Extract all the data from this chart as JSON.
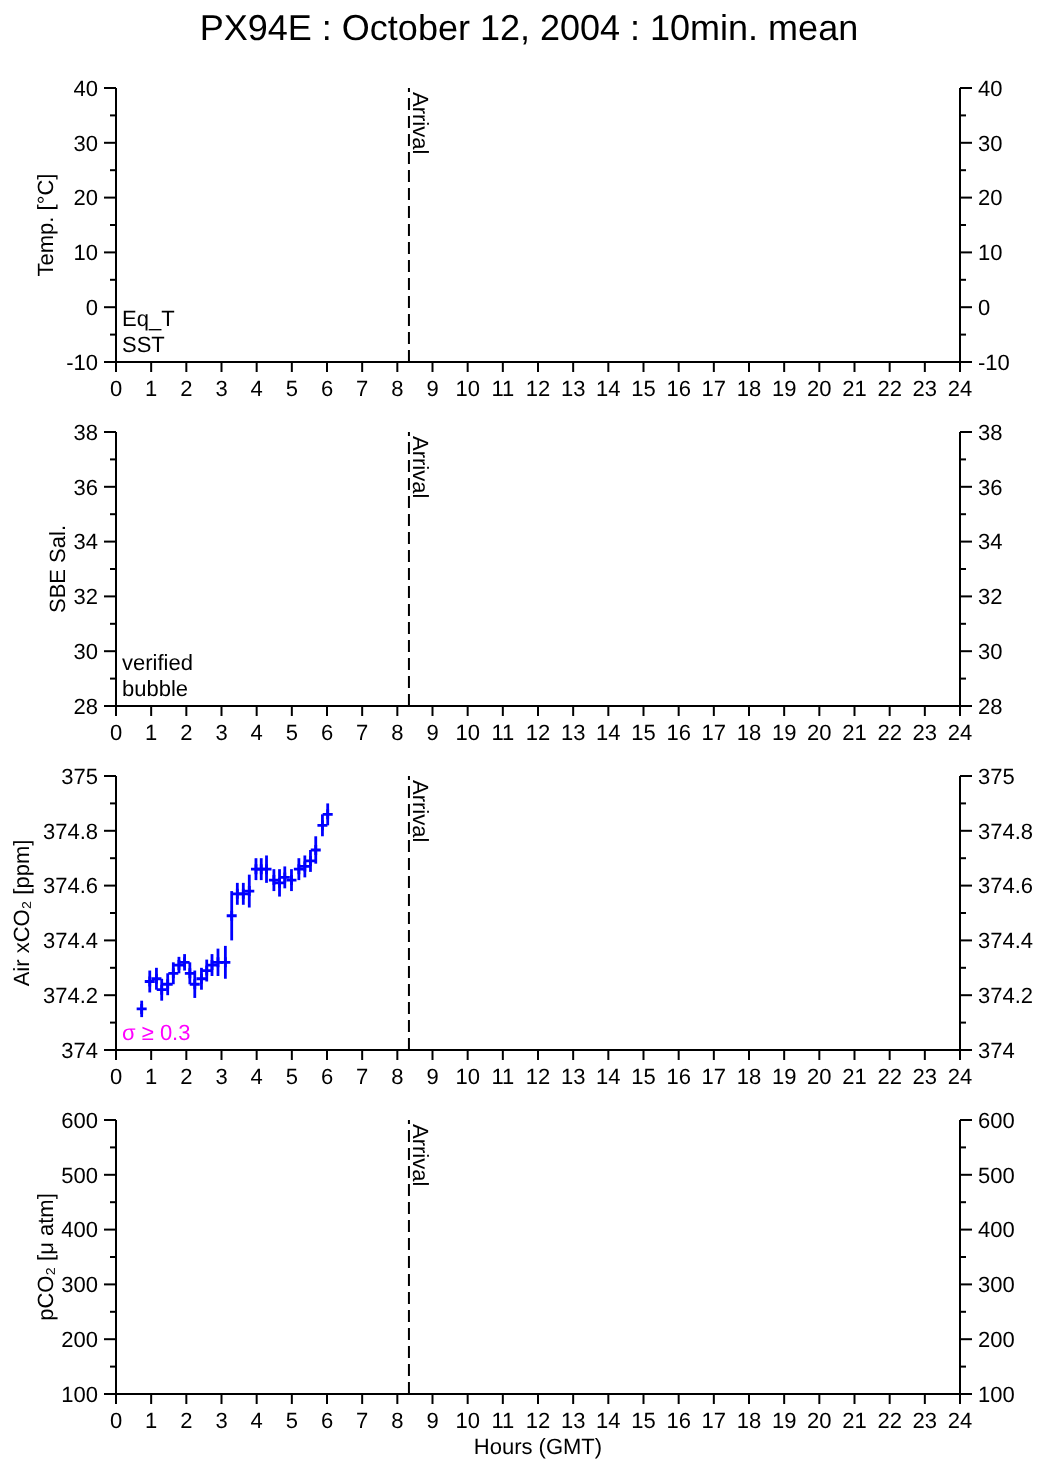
{
  "chart_data": [
    {
      "type": "line",
      "title": "PX94E : October 12, 2004 : 10min. mean",
      "ylabel": "Temp. [°C]",
      "annotations": [
        "Eq_T",
        "SST"
      ],
      "xlim": [
        0,
        24
      ],
      "xticks": [
        0,
        1,
        2,
        3,
        4,
        5,
        6,
        7,
        8,
        9,
        10,
        11,
        12,
        13,
        14,
        15,
        16,
        17,
        18,
        19,
        20,
        21,
        22,
        23,
        24
      ],
      "ylim": [
        -10,
        40
      ],
      "yticks": [
        -10,
        {
          "value": -5,
          "label": null
        },
        0,
        {
          "value": 5,
          "label": null
        },
        10,
        {
          "value": 15,
          "label": null
        },
        20,
        {
          "value": 25,
          "label": null
        },
        30,
        {
          "value": 35,
          "label": null
        },
        40
      ],
      "y2lim": [
        -10,
        40
      ],
      "y2ticks": [
        -10,
        {
          "value": -5,
          "label": null
        },
        0,
        {
          "value": 5,
          "label": null
        },
        10,
        {
          "value": 15,
          "label": null
        },
        20,
        {
          "value": 25,
          "label": null
        },
        30,
        {
          "value": 35,
          "label": null
        },
        40
      ],
      "ref_lines": [
        {
          "axis": "x",
          "value": 8.33,
          "label": "Arrival",
          "color": "#000000",
          "line_style": "dashed"
        }
      ]
    },
    {
      "type": "line",
      "ylabel": "SBE Sal.",
      "annotations": [
        "verified",
        "bubble"
      ],
      "xlim": [
        0,
        24
      ],
      "xticks": [
        0,
        1,
        2,
        3,
        4,
        5,
        6,
        7,
        8,
        9,
        10,
        11,
        12,
        13,
        14,
        15,
        16,
        17,
        18,
        19,
        20,
        21,
        22,
        23,
        24
      ],
      "ylim": [
        28,
        38
      ],
      "yticks": [
        28,
        {
          "value": 29,
          "label": null
        },
        30,
        {
          "value": 31,
          "label": null
        },
        32,
        {
          "value": 33,
          "label": null
        },
        34,
        {
          "value": 35,
          "label": null
        },
        36,
        {
          "value": 37,
          "label": null
        },
        38
      ],
      "y2lim": [
        28,
        38
      ],
      "y2ticks": [
        28,
        {
          "value": 29,
          "label": null
        },
        30,
        {
          "value": 31,
          "label": null
        },
        32,
        {
          "value": 33,
          "label": null
        },
        34,
        {
          "value": 35,
          "label": null
        },
        36,
        {
          "value": 37,
          "label": null
        },
        38
      ],
      "ref_lines": [
        {
          "axis": "x",
          "value": 8.33,
          "label": "Arrival",
          "color": "#000000",
          "line_style": "dashed"
        }
      ]
    },
    {
      "type": "scatter",
      "ylabel": "Air xCO₂ [ppm]",
      "marker": "cross",
      "x": [
        0.73,
        0.96,
        1.15,
        1.3,
        1.47,
        1.63,
        1.79,
        1.95,
        2.1,
        2.24,
        2.43,
        2.58,
        2.73,
        2.9,
        3.11,
        3.29,
        3.45,
        3.62,
        3.79,
        3.98,
        4.13,
        4.28,
        4.49,
        4.65,
        4.8,
        4.99,
        5.2,
        5.37,
        5.53,
        5.68,
        5.87,
        6.02
      ],
      "series": [
        {
          "color": "#0000ff",
          "values": [
            374.15,
            374.25,
            374.26,
            374.22,
            374.24,
            374.28,
            374.31,
            374.32,
            374.28,
            374.24,
            374.26,
            374.29,
            374.31,
            374.32,
            374.32,
            374.49,
            374.57,
            374.57,
            374.58,
            374.66,
            374.66,
            374.66,
            374.62,
            374.61,
            374.63,
            374.62,
            374.66,
            374.67,
            374.69,
            374.73,
            374.82,
            374.86
          ],
          "errors": [
            0.03,
            0.04,
            0.04,
            0.04,
            0.04,
            0.04,
            0.03,
            0.03,
            0.04,
            0.05,
            0.04,
            0.04,
            0.04,
            0.05,
            0.06,
            0.09,
            0.04,
            0.04,
            0.06,
            0.04,
            0.04,
            0.05,
            0.04,
            0.05,
            0.04,
            0.04,
            0.04,
            0.04,
            0.04,
            0.05,
            0.04,
            0.04
          ]
        },
        {
          "name": "σ ≥ 0.3",
          "color": "#ff00ff",
          "values": [
            null,
            null,
            null,
            null,
            null,
            null,
            null,
            null,
            null,
            null,
            null,
            null,
            null,
            null,
            null,
            null,
            null,
            null,
            null,
            null,
            null,
            null,
            null,
            null,
            null,
            null,
            null,
            null,
            null,
            null,
            null,
            null
          ]
        }
      ],
      "xlim": [
        0,
        24
      ],
      "xticks": [
        0,
        1,
        2,
        3,
        4,
        5,
        6,
        7,
        8,
        9,
        10,
        11,
        12,
        13,
        14,
        15,
        16,
        17,
        18,
        19,
        20,
        21,
        22,
        23,
        24
      ],
      "ylim": [
        374,
        375
      ],
      "yticks": [
        374,
        {
          "value": 374.1,
          "label": null
        },
        374.2,
        {
          "value": 374.3,
          "label": null
        },
        374.4,
        {
          "value": 374.5,
          "label": null
        },
        374.6,
        {
          "value": 374.7,
          "label": null
        },
        374.8,
        {
          "value": 374.9,
          "label": null
        },
        375
      ],
      "y2lim": [
        374,
        375
      ],
      "y2ticks": [
        374,
        {
          "value": 374.1,
          "label": null
        },
        374.2,
        {
          "value": 374.3,
          "label": null
        },
        374.4,
        {
          "value": 374.5,
          "label": null
        },
        374.6,
        {
          "value": 374.7,
          "label": null
        },
        374.8,
        {
          "value": 374.9,
          "label": null
        },
        375
      ],
      "ref_lines": [
        {
          "axis": "x",
          "value": 8.33,
          "label": "Arrival",
          "color": "#000000",
          "line_style": "dashed"
        }
      ]
    },
    {
      "type": "line",
      "ylabel": "pCO₂ [μ atm]",
      "xlabel": "Hours (GMT)",
      "xlim": [
        0,
        24
      ],
      "xticks": [
        0,
        1,
        2,
        3,
        4,
        5,
        6,
        7,
        8,
        9,
        10,
        11,
        12,
        13,
        14,
        15,
        16,
        17,
        18,
        19,
        20,
        21,
        22,
        23,
        24
      ],
      "ylim": [
        100,
        600
      ],
      "yticks": [
        100,
        {
          "value": 150,
          "label": null
        },
        200,
        {
          "value": 250,
          "label": null
        },
        300,
        {
          "value": 350,
          "label": null
        },
        400,
        {
          "value": 450,
          "label": null
        },
        500,
        {
          "value": 550,
          "label": null
        },
        600
      ],
      "y2lim": [
        100,
        600
      ],
      "y2ticks": [
        100,
        {
          "value": 150,
          "label": null
        },
        200,
        {
          "value": 250,
          "label": null
        },
        300,
        {
          "value": 350,
          "label": null
        },
        400,
        {
          "value": 450,
          "label": null
        },
        500,
        {
          "value": 550,
          "label": null
        },
        600
      ],
      "ref_lines": [
        {
          "axis": "x",
          "value": 8.33,
          "label": "Arrival",
          "color": "#000000",
          "line_style": "dashed"
        }
      ]
    }
  ]
}
